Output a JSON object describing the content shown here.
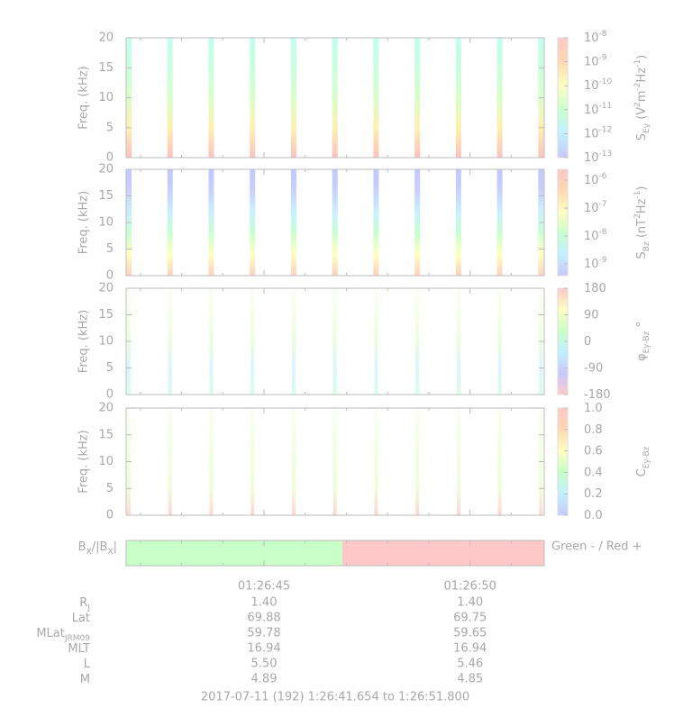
{
  "x_axis": {
    "xlim": [
      41.654,
      51.8
    ],
    "xticks": [
      {
        "value": 45,
        "label": "01:26:45"
      },
      {
        "value": 50,
        "label": "01:26:50"
      }
    ],
    "xminor": [
      42,
      43,
      44,
      46,
      47,
      48,
      49,
      51
    ]
  },
  "chart_data": [
    {
      "type": "spectrogram",
      "ylabel": "Freq. (kHz)",
      "ylim": [
        0,
        20
      ],
      "yticks": [
        0,
        5,
        10,
        15,
        20
      ],
      "x": [
        41.72,
        42.72,
        43.72,
        44.72,
        45.72,
        46.72,
        47.72,
        48.72,
        49.72,
        50.72,
        51.72
      ],
      "fill": [
        "#ffc0c0",
        "#fff0b0",
        "#d8ffc8",
        "#c8ffe0",
        "#c0fff0"
      ],
      "colorbar": {
        "scale": "log",
        "lim": [
          1e-13,
          1e-08
        ],
        "ticks": [
          {
            "value": 1e-08,
            "label": "10",
            "exponent": "-8"
          },
          {
            "value": 1e-09,
            "label": "10",
            "exponent": "-9"
          },
          {
            "value": 1e-10,
            "label": "10",
            "exponent": "-10"
          },
          {
            "value": 1e-11,
            "label": "10",
            "exponent": "-11"
          },
          {
            "value": 1e-12,
            "label": "10",
            "exponent": "-12"
          },
          {
            "value": 1e-13,
            "label": "10",
            "exponent": "-13"
          }
        ],
        "label": [
          {
            "text": "S"
          },
          {
            "text": "Ey",
            "shift": "sub"
          },
          {
            "text": " (V"
          },
          {
            "text": "2",
            "shift": "super"
          },
          {
            "text": "m"
          },
          {
            "text": "-2",
            "shift": "super"
          },
          {
            "text": "Hz"
          },
          {
            "text": "-1",
            "shift": "super"
          },
          {
            "text": ")"
          }
        ],
        "colors": [
          "#c8c8ff",
          "#c0f0ff",
          "#c8ffd0",
          "#ffffc0",
          "#ffd8b0",
          "#ffc8c8"
        ]
      }
    },
    {
      "type": "spectrogram",
      "ylabel": "Freq. (kHz)",
      "ylim": [
        0,
        20
      ],
      "yticks": [
        0,
        5,
        10,
        15,
        20
      ],
      "x": [
        41.72,
        42.72,
        43.72,
        44.72,
        45.72,
        46.72,
        47.72,
        48.72,
        49.72,
        50.72,
        51.72
      ],
      "fill": [
        "#ffd0c0",
        "#ffffc0",
        "#c8ffd0",
        "#c8f0ff",
        "#c8d0ff",
        "#c0c8ff"
      ],
      "colorbar": {
        "scale": "log",
        "lim": [
          3.8e-10,
          2.45e-06
        ],
        "ticks": [
          {
            "value": 1e-06,
            "label": "10",
            "exponent": "-6"
          },
          {
            "value": 1e-07,
            "label": "10",
            "exponent": "-7"
          },
          {
            "value": 1e-08,
            "label": "10",
            "exponent": "-8"
          },
          {
            "value": 1e-09,
            "label": "10",
            "exponent": "-9"
          }
        ],
        "label": [
          {
            "text": "S"
          },
          {
            "text": "Bz",
            "shift": "sub"
          },
          {
            "text": " (nT"
          },
          {
            "text": "2",
            "shift": "super"
          },
          {
            "text": "Hz"
          },
          {
            "text": "-1",
            "shift": "super"
          },
          {
            "text": ")"
          }
        ],
        "colors": [
          "#c8c8ff",
          "#c0f0ff",
          "#c8ffd0",
          "#ffffc0",
          "#ffd8b0",
          "#ffc8c8"
        ]
      }
    },
    {
      "type": "spectrogram",
      "ylabel": "Freq. (kHz)",
      "ylim": [
        0,
        20
      ],
      "yticks": [
        0,
        5,
        10,
        15,
        20
      ],
      "x": [
        41.72,
        42.72,
        43.72,
        44.72,
        45.72,
        46.72,
        47.72,
        48.72,
        49.72,
        50.72,
        51.72
      ],
      "fill": [
        "#c8ffe0",
        "#d0f0ff",
        "#e0ffd0",
        "#f0ffd8",
        "#f8fff0"
      ],
      "colorbar": {
        "scale": "linear",
        "lim": [
          -180,
          180
        ],
        "ticks": [
          180,
          90,
          0,
          -90,
          -180
        ],
        "label": [
          {
            "text": "φ"
          },
          {
            "text": "Ey-Bz",
            "shift": "sub"
          },
          {
            "text": " °"
          }
        ],
        "colors": [
          "#ffc8c8",
          "#c8c8ff",
          "#c0f0ff",
          "#c8ffc8",
          "#ffffc0",
          "#ffc8c8"
        ]
      }
    },
    {
      "type": "spectrogram",
      "ylabel": "Freq. (kHz)",
      "ylim": [
        0,
        20
      ],
      "yticks": [
        0,
        5,
        10,
        15,
        20
      ],
      "x": [
        41.72,
        42.72,
        43.72,
        44.72,
        45.72,
        46.72,
        47.72,
        48.72,
        49.72,
        50.72,
        51.72
      ],
      "fill": [
        "#ffc8c8",
        "#e8ffc8",
        "#e8ffd0",
        "#f0ffd8",
        "#f8fff0"
      ],
      "colorbar": {
        "scale": "linear",
        "lim": [
          0,
          1
        ],
        "ticks": [
          {
            "value": 1,
            "label": "1.0"
          },
          0.8,
          0.6,
          0.4,
          0.2,
          {
            "value": 0,
            "label": "0.0"
          }
        ],
        "label": [
          {
            "text": "C"
          },
          {
            "text": "Ey-Bz",
            "shift": "sub"
          }
        ],
        "colors": [
          "#c8c8ff",
          "#c0f0ff",
          "#c8ffc8",
          "#ffffc0",
          "#ffd8b0",
          "#ffc8c8"
        ]
      }
    },
    {
      "type": "sign-bar",
      "ylabel": [
        {
          "text": "B"
        },
        {
          "text": "X",
          "shift": "sub"
        },
        {
          "text": "/|B"
        },
        {
          "text": "X",
          "shift": "sub"
        },
        {
          "text": "|"
        }
      ],
      "segments": [
        {
          "x0": 41.654,
          "x1": 46.9,
          "color": "#c8ffc8"
        },
        {
          "x0": 46.9,
          "x1": 51.8,
          "color": "#ffc8c8"
        }
      ],
      "legend": "Green - / Red +"
    }
  ],
  "ephemeris": {
    "rows": [
      {
        "label": [
          {
            "text": "R"
          },
          {
            "text": "J",
            "shift": "sub"
          }
        ],
        "values": [
          "1.40",
          "1.40"
        ]
      },
      {
        "label": [
          {
            "text": "Lat"
          }
        ],
        "values": [
          "69.88",
          "69.75"
        ]
      },
      {
        "label": [
          {
            "text": "MLat"
          },
          {
            "text": "JRM09",
            "shift": "sub"
          }
        ],
        "values": [
          "59.78",
          "59.65"
        ]
      },
      {
        "label": [
          {
            "text": "MLT"
          }
        ],
        "values": [
          "16.94",
          "16.94"
        ]
      },
      {
        "label": [
          {
            "text": "L"
          }
        ],
        "values": [
          "5.50",
          "5.46"
        ]
      },
      {
        "label": [
          {
            "text": "M"
          }
        ],
        "values": [
          "4.89",
          "4.85"
        ]
      }
    ],
    "footer": "2017-07-11 (192) 1:26:41.654 to 1:26:51.800"
  }
}
